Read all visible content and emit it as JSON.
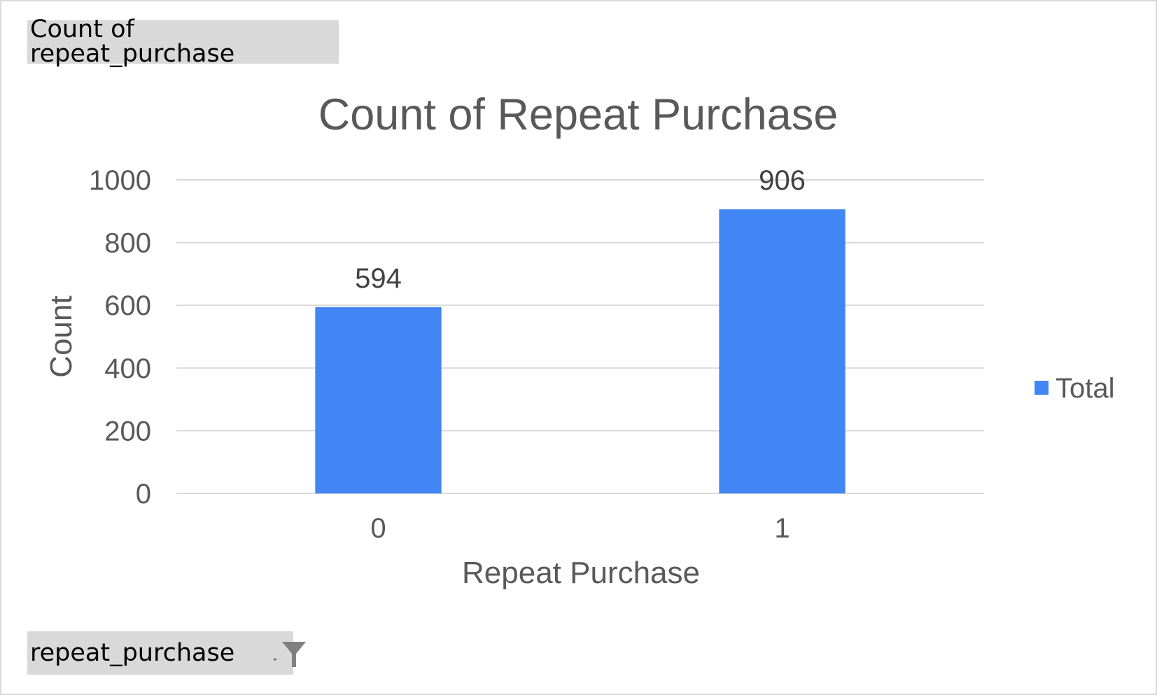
{
  "pivot": {
    "value_field_label": "Count of repeat_purchase",
    "axis_field_label": "repeat_purchase"
  },
  "icons": {
    "dropdown": "chevron-down-icon",
    "filter": "filter-icon"
  },
  "chart_data": {
    "type": "bar",
    "title": "Count of Repeat Purchase",
    "xlabel": "Repeat Purchase",
    "ylabel": "Count",
    "categories": [
      "0",
      "1"
    ],
    "series": [
      {
        "name": "Total",
        "values": [
          594,
          906
        ],
        "color": "#4285f4"
      }
    ],
    "ylim": [
      0,
      1000
    ],
    "yticks": [
      0,
      200,
      400,
      600,
      800,
      1000
    ],
    "data_labels": true,
    "grid": true,
    "gridline_color": "#d9d9d9",
    "legend": "right"
  }
}
